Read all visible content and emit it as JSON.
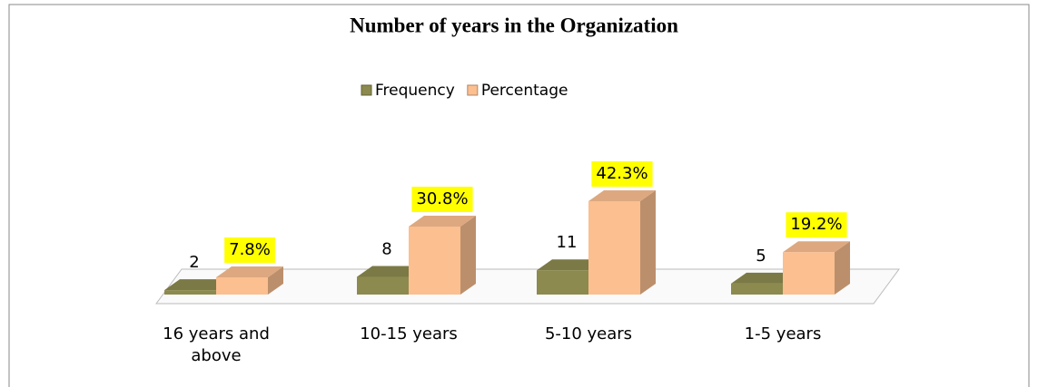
{
  "chart_data": {
    "type": "bar3d",
    "title": "Number of years in the Organization",
    "categories": [
      "16 years and above",
      "10-15 years",
      "5-10 years",
      "1-5 years"
    ],
    "series": [
      {
        "name": "Frequency",
        "color": "#8c8a4e",
        "values": [
          2,
          8,
          11,
          5
        ]
      },
      {
        "name": "Percentage",
        "color": "#fbbf90",
        "values": [
          7.8,
          30.8,
          42.3,
          19.2
        ],
        "value_labels": [
          "7.8%",
          "30.8%",
          "42.3%",
          "19.2%"
        ]
      }
    ],
    "legend": "top"
  }
}
